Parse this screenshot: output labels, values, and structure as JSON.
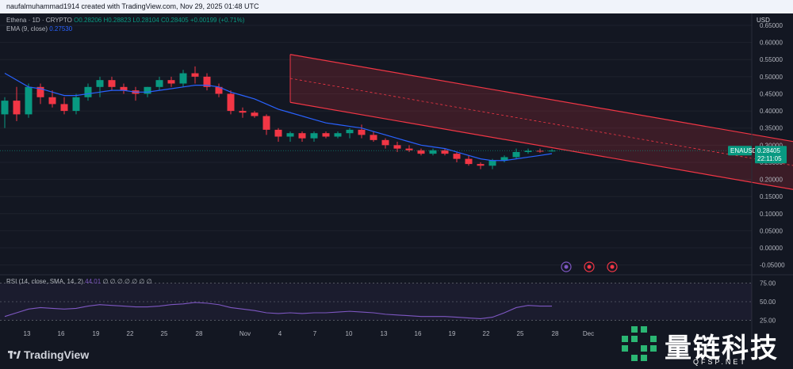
{
  "header": {
    "text": "naufalmuhammad1914 created with TradingView.com, Nov 29, 2025 01:48 UTC"
  },
  "legend": {
    "symbol": "Ethena · 1D · CRYPTO",
    "ohlc": "O0.28206 H0.28823 L0.28104 C0.28405 +0.00199 (+0.71%)",
    "ema_label": "EMA (9, close)",
    "ema_value": "0.27530",
    "rsi_label": "RSI (14, close, SMA, 14, 2)",
    "rsi_value": "44.01",
    "rsi_extra": "∅ ∅ ∅ ∅ ∅ ∅ ∅"
  },
  "currency": "USD",
  "price_tag": {
    "symbol": "ENAUSD",
    "price": "0.28405",
    "countdown": "22:11:05"
  },
  "colors": {
    "up": "#089981",
    "down": "#f23645",
    "ema": "#2962ff",
    "rsi": "#7e57c2",
    "channel": "#f23645"
  },
  "brand": {
    "logo_text": "TradingView",
    "watermark_cn": "量链科技",
    "watermark_en": "QFSP.NET"
  },
  "chart_data": {
    "type": "candlestick",
    "title": "Ethena · 1D · CRYPTO",
    "price_axis": {
      "ticks": [
        "0.65000",
        "0.60000",
        "0.55000",
        "0.50000",
        "0.45000",
        "0.40000",
        "0.35000",
        "0.30000",
        "0.25000",
        "0.20000",
        "0.15000",
        "0.10000",
        "0.05000",
        "0.00000",
        "-0.05000"
      ],
      "range": [
        -0.06,
        0.68
      ]
    },
    "rsi_axis": {
      "ticks": [
        "75.00",
        "50.00",
        "25.00"
      ],
      "range": [
        20,
        80
      ]
    },
    "x_ticks": [
      "13",
      "16",
      "19",
      "22",
      "25",
      "28",
      "Nov",
      "4",
      "7",
      "10",
      "13",
      "16",
      "19",
      "22",
      "25",
      "28",
      "Dec"
    ],
    "candles": [
      {
        "o": 0.39,
        "h": 0.44,
        "l": 0.35,
        "c": 0.43
      },
      {
        "o": 0.43,
        "h": 0.47,
        "l": 0.37,
        "c": 0.39
      },
      {
        "o": 0.39,
        "h": 0.48,
        "l": 0.38,
        "c": 0.47
      },
      {
        "o": 0.47,
        "h": 0.48,
        "l": 0.42,
        "c": 0.44
      },
      {
        "o": 0.44,
        "h": 0.46,
        "l": 0.41,
        "c": 0.42
      },
      {
        "o": 0.42,
        "h": 0.44,
        "l": 0.39,
        "c": 0.4
      },
      {
        "o": 0.4,
        "h": 0.45,
        "l": 0.39,
        "c": 0.44
      },
      {
        "o": 0.44,
        "h": 0.48,
        "l": 0.43,
        "c": 0.47
      },
      {
        "o": 0.47,
        "h": 0.5,
        "l": 0.44,
        "c": 0.49
      },
      {
        "o": 0.49,
        "h": 0.5,
        "l": 0.46,
        "c": 0.47
      },
      {
        "o": 0.47,
        "h": 0.48,
        "l": 0.45,
        "c": 0.46
      },
      {
        "o": 0.46,
        "h": 0.47,
        "l": 0.43,
        "c": 0.45
      },
      {
        "o": 0.45,
        "h": 0.47,
        "l": 0.44,
        "c": 0.47
      },
      {
        "o": 0.47,
        "h": 0.5,
        "l": 0.46,
        "c": 0.49
      },
      {
        "o": 0.49,
        "h": 0.5,
        "l": 0.47,
        "c": 0.48
      },
      {
        "o": 0.48,
        "h": 0.52,
        "l": 0.47,
        "c": 0.51
      },
      {
        "o": 0.51,
        "h": 0.53,
        "l": 0.48,
        "c": 0.5
      },
      {
        "o": 0.5,
        "h": 0.51,
        "l": 0.46,
        "c": 0.47
      },
      {
        "o": 0.47,
        "h": 0.48,
        "l": 0.44,
        "c": 0.45
      },
      {
        "o": 0.45,
        "h": 0.46,
        "l": 0.39,
        "c": 0.4
      },
      {
        "o": 0.4,
        "h": 0.41,
        "l": 0.38,
        "c": 0.395
      },
      {
        "o": 0.395,
        "h": 0.4,
        "l": 0.38,
        "c": 0.385
      },
      {
        "o": 0.385,
        "h": 0.39,
        "l": 0.33,
        "c": 0.345
      },
      {
        "o": 0.345,
        "h": 0.35,
        "l": 0.31,
        "c": 0.325
      },
      {
        "o": 0.325,
        "h": 0.34,
        "l": 0.31,
        "c": 0.335
      },
      {
        "o": 0.335,
        "h": 0.34,
        "l": 0.31,
        "c": 0.32
      },
      {
        "o": 0.32,
        "h": 0.34,
        "l": 0.31,
        "c": 0.335
      },
      {
        "o": 0.335,
        "h": 0.34,
        "l": 0.32,
        "c": 0.325
      },
      {
        "o": 0.325,
        "h": 0.34,
        "l": 0.32,
        "c": 0.335
      },
      {
        "o": 0.335,
        "h": 0.35,
        "l": 0.32,
        "c": 0.345
      },
      {
        "o": 0.345,
        "h": 0.36,
        "l": 0.32,
        "c": 0.33
      },
      {
        "o": 0.33,
        "h": 0.34,
        "l": 0.31,
        "c": 0.315
      },
      {
        "o": 0.315,
        "h": 0.32,
        "l": 0.29,
        "c": 0.3
      },
      {
        "o": 0.3,
        "h": 0.31,
        "l": 0.28,
        "c": 0.29
      },
      {
        "o": 0.29,
        "h": 0.3,
        "l": 0.28,
        "c": 0.285
      },
      {
        "o": 0.285,
        "h": 0.29,
        "l": 0.27,
        "c": 0.275
      },
      {
        "o": 0.275,
        "h": 0.29,
        "l": 0.27,
        "c": 0.285
      },
      {
        "o": 0.285,
        "h": 0.29,
        "l": 0.27,
        "c": 0.275
      },
      {
        "o": 0.275,
        "h": 0.28,
        "l": 0.25,
        "c": 0.26
      },
      {
        "o": 0.26,
        "h": 0.27,
        "l": 0.24,
        "c": 0.245
      },
      {
        "o": 0.245,
        "h": 0.25,
        "l": 0.23,
        "c": 0.24
      },
      {
        "o": 0.24,
        "h": 0.26,
        "l": 0.23,
        "c": 0.255
      },
      {
        "o": 0.255,
        "h": 0.27,
        "l": 0.25,
        "c": 0.265
      },
      {
        "o": 0.265,
        "h": 0.29,
        "l": 0.26,
        "c": 0.28
      },
      {
        "o": 0.28,
        "h": 0.29,
        "l": 0.275,
        "c": 0.2835
      },
      {
        "o": 0.2835,
        "h": 0.29,
        "l": 0.278,
        "c": 0.282
      },
      {
        "o": 0.28206,
        "h": 0.28823,
        "l": 0.28104,
        "c": 0.28405
      }
    ],
    "ema": [
      0.51,
      0.49,
      0.47,
      0.465,
      0.455,
      0.445,
      0.445,
      0.45,
      0.455,
      0.46,
      0.46,
      0.455,
      0.455,
      0.46,
      0.465,
      0.47,
      0.475,
      0.475,
      0.47,
      0.455,
      0.445,
      0.435,
      0.42,
      0.405,
      0.395,
      0.385,
      0.375,
      0.365,
      0.36,
      0.355,
      0.35,
      0.34,
      0.33,
      0.32,
      0.31,
      0.3,
      0.295,
      0.29,
      0.28,
      0.27,
      0.26,
      0.255,
      0.255,
      0.26,
      0.265,
      0.27,
      0.2753
    ],
    "rsi": [
      30,
      35,
      40,
      42,
      41,
      40,
      41,
      44,
      46,
      45,
      44,
      43,
      43,
      44,
      46,
      47,
      49,
      48,
      46,
      42,
      40,
      38,
      35,
      34,
      35,
      34,
      35,
      35,
      36,
      37,
      36,
      35,
      33,
      32,
      31,
      30,
      30,
      30,
      29,
      28,
      27,
      29,
      35,
      42,
      45,
      44,
      44
    ],
    "channel": {
      "upper": [
        [
          24,
          0.565
        ],
        [
          88,
          0.18
        ]
      ],
      "lower": [
        [
          24,
          0.425
        ],
        [
          88,
          0.04
        ]
      ],
      "mid": [
        [
          24,
          0.495
        ],
        [
          88,
          0.11
        ]
      ]
    }
  }
}
